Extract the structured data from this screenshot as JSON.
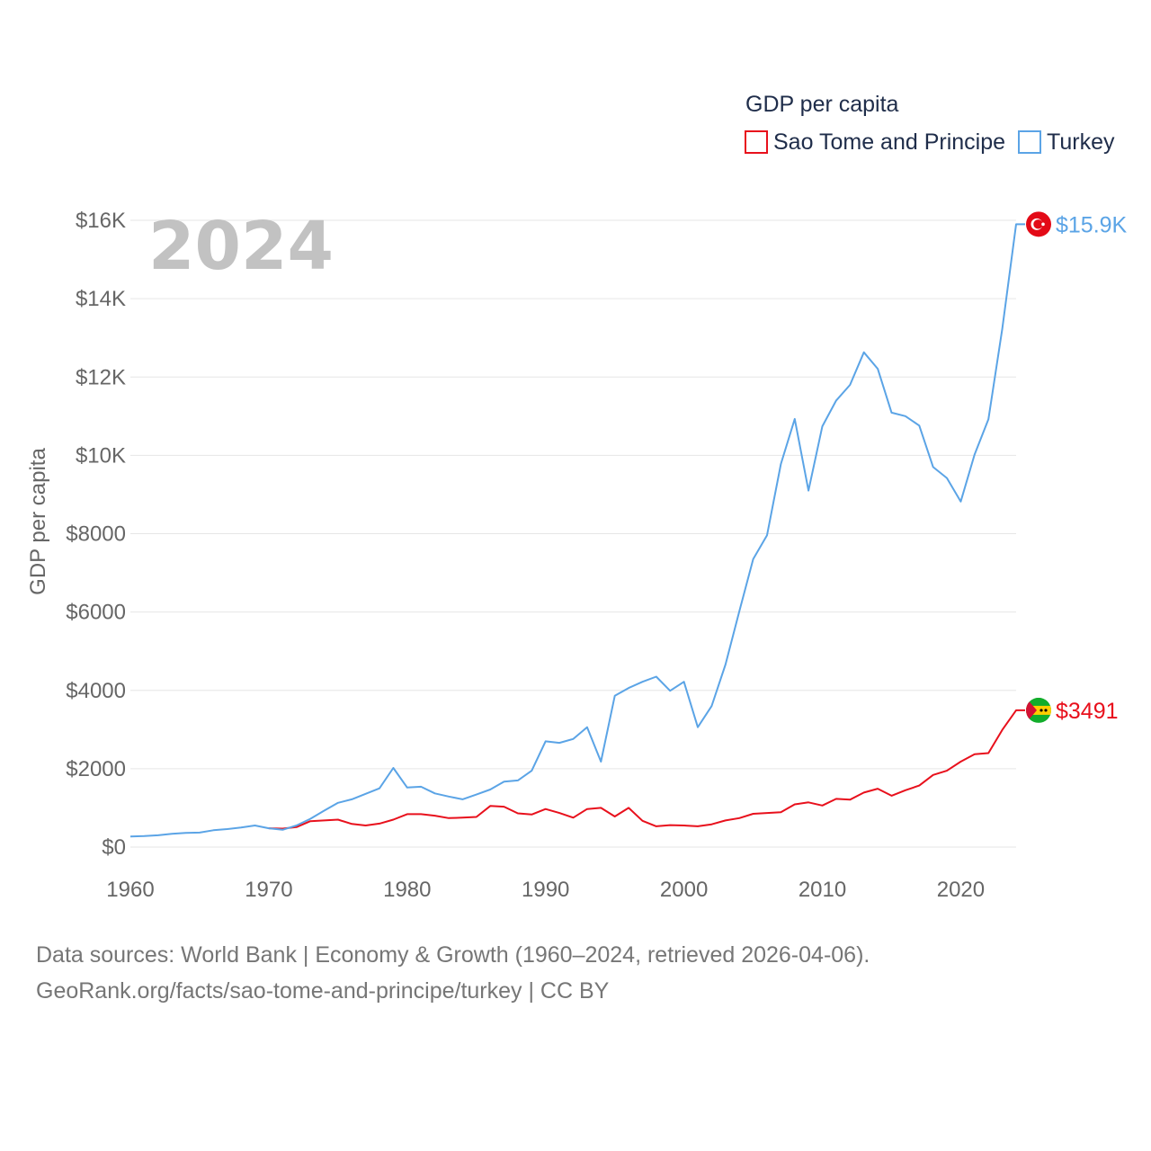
{
  "chart_data": {
    "type": "line",
    "title": "GDP per capita",
    "highlight_year": "2024",
    "xlabel": "",
    "ylabel": "GDP per capita",
    "xlim": [
      1960,
      2024
    ],
    "ylim": [
      0,
      16000
    ],
    "x_ticks": [
      1960,
      1970,
      1980,
      1990,
      2000,
      2010,
      2020
    ],
    "y_ticks": [
      {
        "value": 0,
        "label": "$0"
      },
      {
        "value": 2000,
        "label": "$2000"
      },
      {
        "value": 4000,
        "label": "$4000"
      },
      {
        "value": 6000,
        "label": "$6000"
      },
      {
        "value": 8000,
        "label": "$8000"
      },
      {
        "value": 10000,
        "label": "$10K"
      },
      {
        "value": 12000,
        "label": "$12K"
      },
      {
        "value": 14000,
        "label": "$14K"
      },
      {
        "value": 16000,
        "label": "$16K"
      }
    ],
    "grid": true,
    "legend_position": "top-right",
    "series": [
      {
        "name": "Sao Tome and Principe",
        "color": "#e8101c",
        "end_label": "$3491",
        "flag_icon": "sao-tome-and-principe-flag-icon",
        "points": [
          [
            1970,
            480
          ],
          [
            1971,
            470
          ],
          [
            1972,
            510
          ],
          [
            1973,
            660
          ],
          [
            1974,
            680
          ],
          [
            1975,
            700
          ],
          [
            1976,
            590
          ],
          [
            1977,
            550
          ],
          [
            1978,
            600
          ],
          [
            1979,
            700
          ],
          [
            1980,
            840
          ],
          [
            1981,
            840
          ],
          [
            1982,
            800
          ],
          [
            1983,
            740
          ],
          [
            1984,
            750
          ],
          [
            1985,
            770
          ],
          [
            1986,
            1050
          ],
          [
            1987,
            1030
          ],
          [
            1988,
            860
          ],
          [
            1989,
            830
          ],
          [
            1990,
            970
          ],
          [
            1991,
            870
          ],
          [
            1992,
            750
          ],
          [
            1993,
            970
          ],
          [
            1994,
            1000
          ],
          [
            1995,
            780
          ],
          [
            1996,
            1000
          ],
          [
            1997,
            670
          ],
          [
            1998,
            530
          ],
          [
            1999,
            560
          ],
          [
            2000,
            550
          ],
          [
            2001,
            530
          ],
          [
            2002,
            580
          ],
          [
            2003,
            680
          ],
          [
            2004,
            740
          ],
          [
            2005,
            850
          ],
          [
            2006,
            870
          ],
          [
            2007,
            890
          ],
          [
            2008,
            1090
          ],
          [
            2009,
            1140
          ],
          [
            2010,
            1060
          ],
          [
            2011,
            1230
          ],
          [
            2012,
            1210
          ],
          [
            2013,
            1390
          ],
          [
            2014,
            1490
          ],
          [
            2015,
            1310
          ],
          [
            2016,
            1450
          ],
          [
            2017,
            1570
          ],
          [
            2018,
            1840
          ],
          [
            2019,
            1950
          ],
          [
            2020,
            2180
          ],
          [
            2021,
            2370
          ],
          [
            2022,
            2400
          ],
          [
            2023,
            2990
          ],
          [
            2024,
            3491
          ]
        ]
      },
      {
        "name": "Turkey",
        "color": "#5ba4e6",
        "end_label": "$15.9K",
        "flag_icon": "turkey-flag-icon",
        "points": [
          [
            1960,
            270
          ],
          [
            1961,
            280
          ],
          [
            1962,
            300
          ],
          [
            1963,
            340
          ],
          [
            1964,
            360
          ],
          [
            1965,
            370
          ],
          [
            1966,
            430
          ],
          [
            1967,
            460
          ],
          [
            1968,
            500
          ],
          [
            1969,
            550
          ],
          [
            1970,
            480
          ],
          [
            1971,
            440
          ],
          [
            1972,
            550
          ],
          [
            1973,
            720
          ],
          [
            1974,
            930
          ],
          [
            1975,
            1130
          ],
          [
            1976,
            1220
          ],
          [
            1977,
            1360
          ],
          [
            1978,
            1500
          ],
          [
            1979,
            2020
          ],
          [
            1980,
            1520
          ],
          [
            1981,
            1540
          ],
          [
            1982,
            1370
          ],
          [
            1983,
            1290
          ],
          [
            1984,
            1220
          ],
          [
            1985,
            1340
          ],
          [
            1986,
            1470
          ],
          [
            1987,
            1670
          ],
          [
            1988,
            1700
          ],
          [
            1989,
            1950
          ],
          [
            1990,
            2700
          ],
          [
            1991,
            2660
          ],
          [
            1992,
            2760
          ],
          [
            1993,
            3060
          ],
          [
            1994,
            2180
          ],
          [
            1995,
            3860
          ],
          [
            1996,
            4060
          ],
          [
            1997,
            4220
          ],
          [
            1998,
            4350
          ],
          [
            1999,
            3990
          ],
          [
            2000,
            4220
          ],
          [
            2001,
            3060
          ],
          [
            2002,
            3600
          ],
          [
            2003,
            4660
          ],
          [
            2004,
            6020
          ],
          [
            2005,
            7350
          ],
          [
            2006,
            7960
          ],
          [
            2007,
            9780
          ],
          [
            2008,
            10930
          ],
          [
            2009,
            9100
          ],
          [
            2010,
            10740
          ],
          [
            2011,
            11400
          ],
          [
            2012,
            11800
          ],
          [
            2013,
            12630
          ],
          [
            2014,
            12210
          ],
          [
            2015,
            11090
          ],
          [
            2016,
            11000
          ],
          [
            2017,
            10760
          ],
          [
            2018,
            9700
          ],
          [
            2019,
            9420
          ],
          [
            2020,
            8820
          ],
          [
            2021,
            10020
          ],
          [
            2022,
            10920
          ],
          [
            2023,
            13230
          ],
          [
            2024,
            15900
          ]
        ]
      }
    ]
  },
  "footer": {
    "line1": "Data sources: World Bank | Economy & Growth (1960–2024, retrieved 2026-04-06).",
    "line2": "GeoRank.org/facts/sao-tome-and-principe/turkey | CC BY"
  }
}
